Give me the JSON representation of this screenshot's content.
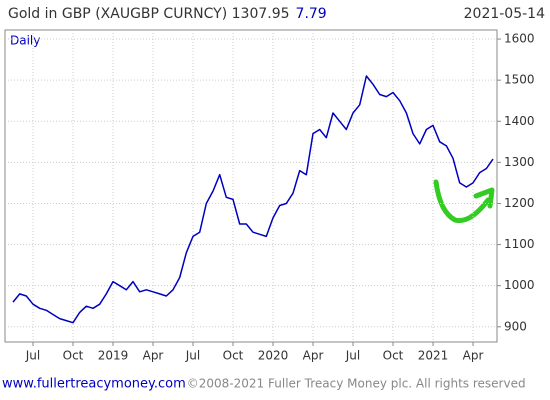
{
  "chart_data": {
    "type": "line",
    "title": "Gold in GBP (XAUGBP CURNCY) 1307.95",
    "change": "7.79",
    "date": "2021-05-14",
    "subtitle": "Daily",
    "footer_link": "www.fullertreacymoney.com",
    "footer_note": "©2008-2021 Fuller Treacy Money plc. All rights reserved",
    "categories": [
      null,
      null,
      null,
      "Jul",
      null,
      null,
      null,
      null,
      null,
      "Oct",
      null,
      null,
      null,
      null,
      null,
      "2019",
      null,
      null,
      null,
      null,
      null,
      "Apr",
      null,
      null,
      null,
      null,
      null,
      "Jul",
      null,
      null,
      null,
      null,
      null,
      "Oct",
      null,
      null,
      null,
      null,
      null,
      "2020",
      null,
      null,
      null,
      null,
      null,
      "Apr",
      null,
      null,
      null,
      null,
      null,
      "Jul",
      null,
      null,
      null,
      null,
      null,
      "Oct",
      null,
      null,
      null,
      null,
      null,
      "2021",
      null,
      null,
      null,
      null,
      null,
      "Apr",
      null,
      null,
      null
    ],
    "series": [
      {
        "color": "#0000c0",
        "values": [
          960,
          980,
          975,
          955,
          945,
          940,
          930,
          920,
          915,
          910,
          935,
          950,
          945,
          955,
          980,
          1010,
          1000,
          990,
          1010,
          985,
          990,
          985,
          980,
          975,
          990,
          1020,
          1080,
          1120,
          1130,
          1200,
          1230,
          1270,
          1215,
          1210,
          1150,
          1150,
          1130,
          1125,
          1120,
          1165,
          1195,
          1200,
          1225,
          1280,
          1270,
          1370,
          1380,
          1360,
          1420,
          1400,
          1380,
          1420,
          1440,
          1510,
          1490,
          1465,
          1460,
          1470,
          1450,
          1420,
          1370,
          1345,
          1380,
          1390,
          1350,
          1340,
          1310,
          1250,
          1240,
          1250,
          1275,
          1285,
          1308
        ]
      }
    ],
    "ylim": [
      863,
      1622
    ],
    "yticks": [
      900,
      1000,
      1100,
      1200,
      1300,
      1400,
      1500,
      1600
    ],
    "grid": true
  }
}
